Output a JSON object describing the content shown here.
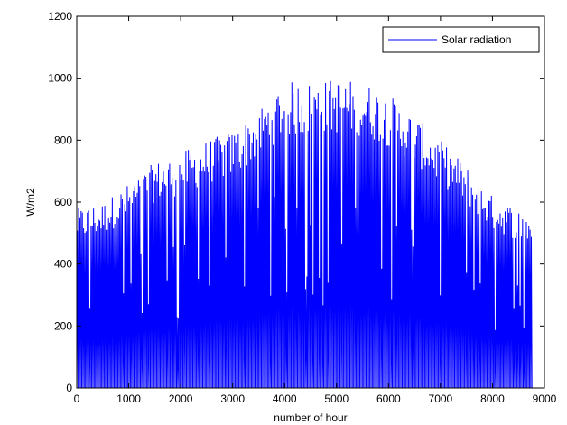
{
  "chart_data": {
    "type": "line",
    "xlabel": "number of hour",
    "ylabel": "W/m2",
    "xlim": [
      0,
      9000
    ],
    "ylim": [
      0,
      1200
    ],
    "xticks": [
      0,
      1000,
      2000,
      3000,
      4000,
      5000,
      6000,
      7000,
      8000,
      9000
    ],
    "yticks": [
      0,
      200,
      400,
      600,
      800,
      1000,
      1200
    ],
    "grid": false,
    "legend_position": "top-right",
    "series": [
      {
        "name": "Solar radiation",
        "color": "#0000ff",
        "x_range": [
          0,
          8760
        ],
        "daily_peak_envelope": {
          "x": [
            0,
            500,
            1000,
            1500,
            2000,
            2500,
            3000,
            3500,
            3800,
            4000,
            4500,
            5000,
            5500,
            6000,
            6500,
            7000,
            7500,
            8000,
            8500,
            8760
          ],
          "y": [
            580,
            600,
            660,
            730,
            760,
            800,
            830,
            900,
            960,
            990,
            990,
            1000,
            990,
            950,
            880,
            800,
            720,
            620,
            580,
            560
          ]
        }
      }
    ]
  }
}
